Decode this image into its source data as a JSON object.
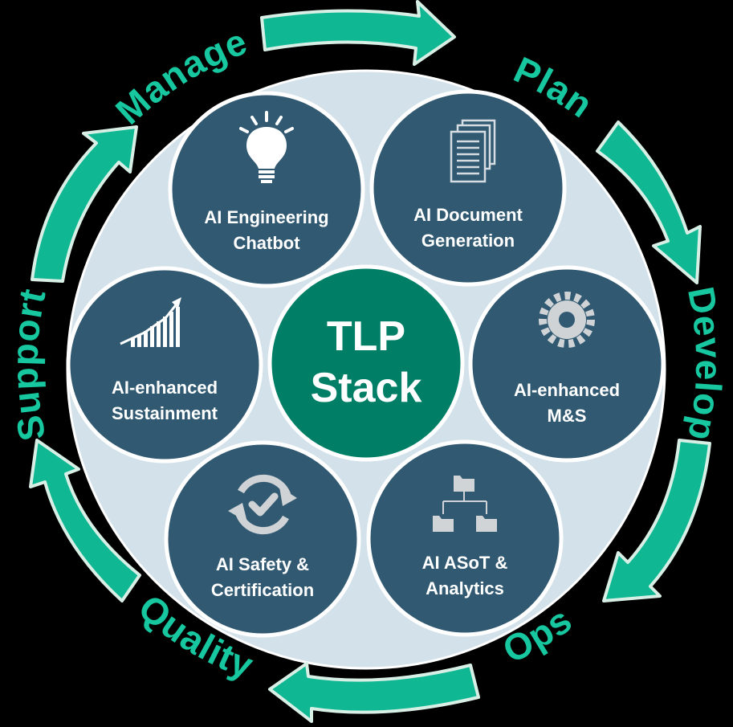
{
  "colors": {
    "background": "#000000",
    "ring": "#d3e2ea",
    "node_fill": "#315a72",
    "center_fill": "#007f66",
    "accent": "#17c79f",
    "node_border": "#ffffff"
  },
  "phases": [
    {
      "id": "plan",
      "label": "Plan"
    },
    {
      "id": "develop",
      "label": "Develop"
    },
    {
      "id": "ops",
      "label": "Ops"
    },
    {
      "id": "quality",
      "label": "Quality"
    },
    {
      "id": "support",
      "label": "Support"
    },
    {
      "id": "manage",
      "label": "Manage"
    }
  ],
  "center": {
    "line1": "TLP",
    "line2": "Stack"
  },
  "nodes": [
    {
      "id": "chatbot",
      "icon": "lightbulb-icon",
      "line1": "AI Engineering",
      "line2": "Chatbot"
    },
    {
      "id": "docgen",
      "icon": "documents-icon",
      "line1": "AI Document",
      "line2": "Generation"
    },
    {
      "id": "ms",
      "icon": "gear-icon",
      "line1": "AI-enhanced",
      "line2": "M&S"
    },
    {
      "id": "asot",
      "icon": "folder-tree-icon",
      "line1": "AI ASoT &",
      "line2": "Analytics"
    },
    {
      "id": "safety",
      "icon": "refresh-check-icon",
      "line1": "AI Safety &",
      "line2": "Certification"
    },
    {
      "id": "sustainment",
      "icon": "growth-chart-icon",
      "line1": "AI-enhanced",
      "line2": "Sustainment"
    }
  ]
}
